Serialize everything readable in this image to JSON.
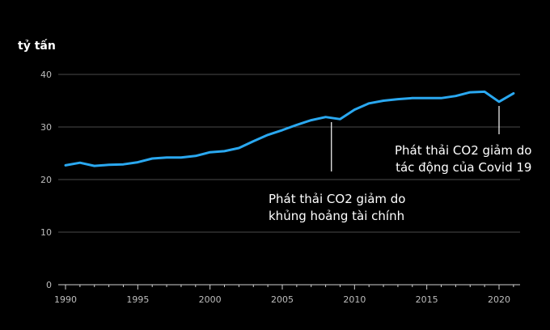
{
  "chart_data": {
    "type": "line",
    "ylabel": "tỷ tấn",
    "ylim": [
      0,
      40
    ],
    "xlim": [
      1990,
      2021
    ],
    "yticks": [
      "0",
      "10",
      "20",
      "30",
      "40"
    ],
    "xticks": [
      "1990",
      "1995",
      "2000",
      "2005",
      "2010",
      "2015",
      "2020"
    ],
    "grid": "horizontal",
    "line_color": "#2aa8f0",
    "series": [
      {
        "x": [
          1990,
          1991,
          1992,
          1993,
          1994,
          1995,
          1996,
          1997,
          1998,
          1999,
          2000,
          2001,
          2002,
          2003,
          2004,
          2005,
          2006,
          2007,
          2008,
          2009,
          2010,
          2011,
          2012,
          2013,
          2014,
          2015,
          2016,
          2017,
          2018,
          2019,
          2020,
          2021
        ],
        "values": [
          22.7,
          23.2,
          22.6,
          22.8,
          22.9,
          23.3,
          24.0,
          24.2,
          24.2,
          24.5,
          25.2,
          25.4,
          26.0,
          27.3,
          28.5,
          29.4,
          30.4,
          31.3,
          31.9,
          31.5,
          33.3,
          34.5,
          35.0,
          35.3,
          35.5,
          35.5,
          35.5,
          35.9,
          36.6,
          36.7,
          34.8,
          36.4
        ]
      }
    ],
    "annotations": [
      {
        "x": 2008.4,
        "lines": [
          "Phát thải CO2 giảm do",
          "khủng hoảng tài chính"
        ]
      },
      {
        "x": 2020,
        "lines": [
          "Phát thải CO2 giảm do",
          "tác động của Covid 19"
        ]
      }
    ]
  }
}
